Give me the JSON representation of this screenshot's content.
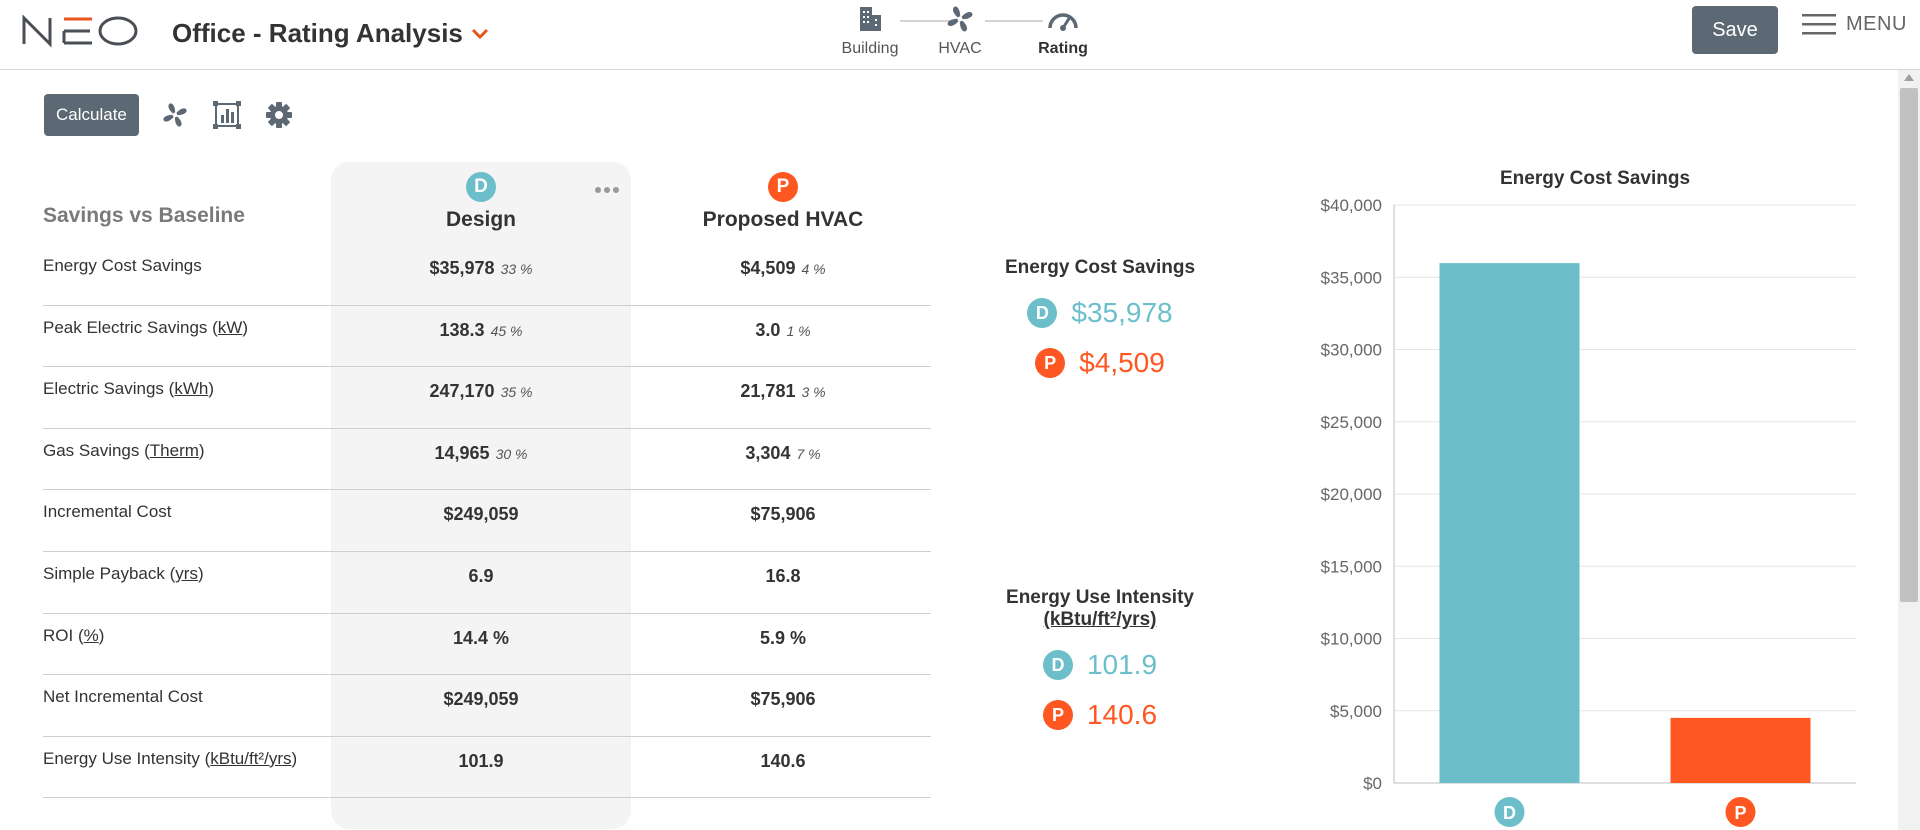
{
  "header": {
    "logo_text": "NEO",
    "title": "Office - Rating Analysis",
    "save_label": "Save",
    "menu_label": "MENU",
    "steps": [
      {
        "label": "Building",
        "icon": "building-icon"
      },
      {
        "label": "HVAC",
        "icon": "fan-icon"
      },
      {
        "label": "Rating",
        "icon": "gauge-icon",
        "active": true
      }
    ]
  },
  "toolbar": {
    "calculate_label": "Calculate",
    "icons": [
      "fan-icon",
      "chart-icon",
      "gear-icon"
    ]
  },
  "table": {
    "section_title": "Savings vs Baseline",
    "columns": [
      {
        "badge": "D",
        "name": "Design"
      },
      {
        "badge": "P",
        "name": "Proposed HVAC"
      }
    ],
    "rows": [
      {
        "label": "Energy Cost Savings",
        "unit": "",
        "design": "$35,978",
        "design_pct": "33 %",
        "proposed": "$4,509",
        "proposed_pct": "4 %"
      },
      {
        "label": "Peak Electric Savings",
        "unit": "kW",
        "design": "138.3",
        "design_pct": "45 %",
        "proposed": "3.0",
        "proposed_pct": "1 %"
      },
      {
        "label": "Electric Savings",
        "unit": "kWh",
        "design": "247,170",
        "design_pct": "35 %",
        "proposed": "21,781",
        "proposed_pct": "3 %"
      },
      {
        "label": "Gas Savings",
        "unit": "Therm",
        "design": "14,965",
        "design_pct": "30 %",
        "proposed": "3,304",
        "proposed_pct": "7 %"
      },
      {
        "label": "Incremental Cost",
        "unit": "",
        "design": "$249,059",
        "design_pct": "",
        "proposed": "$75,906",
        "proposed_pct": ""
      },
      {
        "label": "Simple Payback",
        "unit": "yrs",
        "design": "6.9",
        "design_pct": "",
        "proposed": "16.8",
        "proposed_pct": ""
      },
      {
        "label": "ROI",
        "unit": "%",
        "design": "14.4 %",
        "design_pct": "",
        "proposed": "5.9 %",
        "proposed_pct": ""
      },
      {
        "label": "Net Incremental Cost",
        "unit": "",
        "design": "$249,059",
        "design_pct": "",
        "proposed": "$75,906",
        "proposed_pct": ""
      },
      {
        "label": "Energy Use Intensity",
        "unit": "kBtu/ft²/yrs",
        "design": "101.9",
        "design_pct": "",
        "proposed": "140.6",
        "proposed_pct": ""
      }
    ]
  },
  "summary": {
    "cost": {
      "title": "Energy Cost Savings",
      "design": "$35,978",
      "proposed": "$4,509"
    },
    "eui": {
      "title": "Energy Use Intensity",
      "unit": "(kBtu/ft²/yrs)",
      "design": "101.9",
      "proposed": "140.6"
    }
  },
  "colors": {
    "design": "#6cbfca",
    "proposed": "#ff5722",
    "button": "#5c6873",
    "accent": "#e8541e"
  },
  "chart_data": {
    "type": "bar",
    "title": "Energy Cost Savings",
    "categories": [
      "D",
      "P"
    ],
    "values": [
      35978,
      4509
    ],
    "ylim": [
      0,
      40000
    ],
    "yticks": [
      0,
      5000,
      10000,
      15000,
      20000,
      25000,
      30000,
      35000,
      40000
    ],
    "ytick_labels": [
      "$0",
      "$5,000",
      "$10,000",
      "$15,000",
      "$20,000",
      "$25,000",
      "$30,000",
      "$35,000",
      "$40,000"
    ],
    "colors": [
      "#6cbfca",
      "#ff5722"
    ],
    "grid": true
  }
}
